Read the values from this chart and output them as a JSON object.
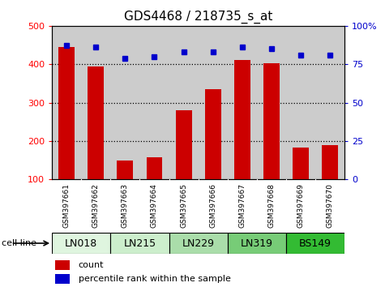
{
  "title": "GDS4468 / 218735_s_at",
  "samples": [
    "GSM397661",
    "GSM397662",
    "GSM397663",
    "GSM397664",
    "GSM397665",
    "GSM397666",
    "GSM397667",
    "GSM397668",
    "GSM397669",
    "GSM397670"
  ],
  "counts": [
    445,
    395,
    150,
    158,
    280,
    336,
    410,
    403,
    183,
    190
  ],
  "percentiles": [
    87,
    86,
    79,
    80,
    83,
    83,
    86,
    85,
    81,
    81
  ],
  "cell_lines": [
    {
      "label": "LN018",
      "start": 0,
      "end": 2,
      "color": "#dff5df"
    },
    {
      "label": "LN215",
      "start": 2,
      "end": 4,
      "color": "#cceecc"
    },
    {
      "label": "LN229",
      "start": 4,
      "end": 6,
      "color": "#aaddaa"
    },
    {
      "label": "LN319",
      "start": 6,
      "end": 8,
      "color": "#77cc77"
    },
    {
      "label": "BS149",
      "start": 8,
      "end": 10,
      "color": "#33bb33"
    }
  ],
  "ylim_left": [
    100,
    500
  ],
  "ylim_right": [
    0,
    100
  ],
  "yticks_left": [
    100,
    200,
    300,
    400,
    500
  ],
  "yticks_right": [
    0,
    25,
    50,
    75,
    100
  ],
  "bar_color": "#cc0000",
  "dot_color": "#0000cc",
  "bar_bg_color": "#cccccc",
  "title_fontsize": 11,
  "tick_fontsize": 8,
  "label_fontsize": 8,
  "cell_line_fontsize": 9,
  "sample_fontsize": 6.5
}
